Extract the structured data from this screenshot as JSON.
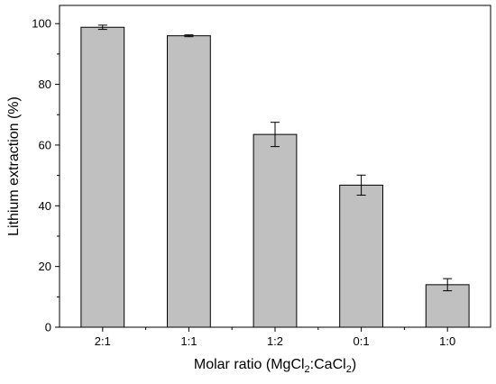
{
  "chart_data": {
    "type": "bar",
    "categories": [
      "2:1",
      "1:1",
      "1:2",
      "0:1",
      "1:0"
    ],
    "values": [
      98.8,
      96.0,
      63.5,
      46.8,
      14.0
    ],
    "errors": [
      0.7,
      0.3,
      4.0,
      3.3,
      2.0
    ],
    "title": "",
    "xlabel": {
      "prefix": "Molar ratio (MgCl",
      "sub1": "2",
      "middle": ":CaCl",
      "sub2": "2",
      "suffix": ")"
    },
    "ylabel": "Lithium extraction (%)",
    "ylim": [
      0,
      106
    ],
    "yticks": [
      "0",
      "20",
      "40",
      "60",
      "80",
      "100"
    ],
    "colors": {
      "bar_fill": "#c0c0c0",
      "bar_stroke": "#000000",
      "axis": "#000000"
    }
  }
}
